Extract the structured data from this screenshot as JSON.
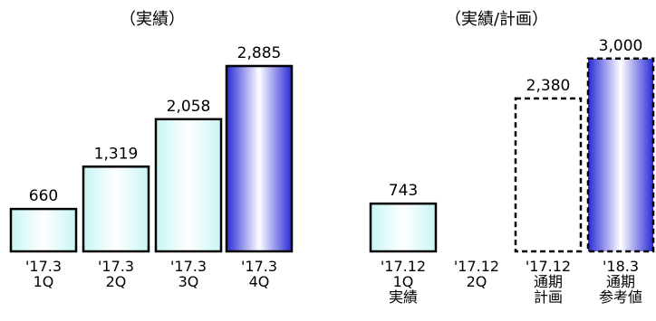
{
  "chart_data": [
    {
      "type": "bar",
      "title": "（実績）",
      "categories": [
        "'17.3\n1Q",
        "'17.3\n2Q",
        "'17.3\n3Q",
        "'17.3\n4Q"
      ],
      "values": [
        660,
        1319,
        2058,
        2885
      ],
      "value_labels": [
        "660",
        "1,319",
        "2,058",
        "2,885"
      ],
      "styles": [
        "light",
        "light",
        "light",
        "accent"
      ]
    },
    {
      "type": "bar",
      "title": "（実績/計画）",
      "categories": [
        "'17.12\n1Q\n実績",
        "'17.12\n2Q",
        "'17.12\n通期\n計画",
        "'18.3\n通期\n参考値"
      ],
      "values": [
        743,
        null,
        2380,
        3000
      ],
      "value_labels": [
        "743",
        "",
        "2,380",
        "3,000"
      ],
      "styles": [
        "light",
        "none",
        "dashed-empty",
        "dashed-accent"
      ]
    }
  ],
  "colors": {
    "light_fill_edge": "#c8f5f5",
    "light_fill_center": "#ffffff",
    "accent_fill_edge": "#2a2ad6",
    "accent_fill_center": "#ffffff",
    "outline": "#000000"
  }
}
